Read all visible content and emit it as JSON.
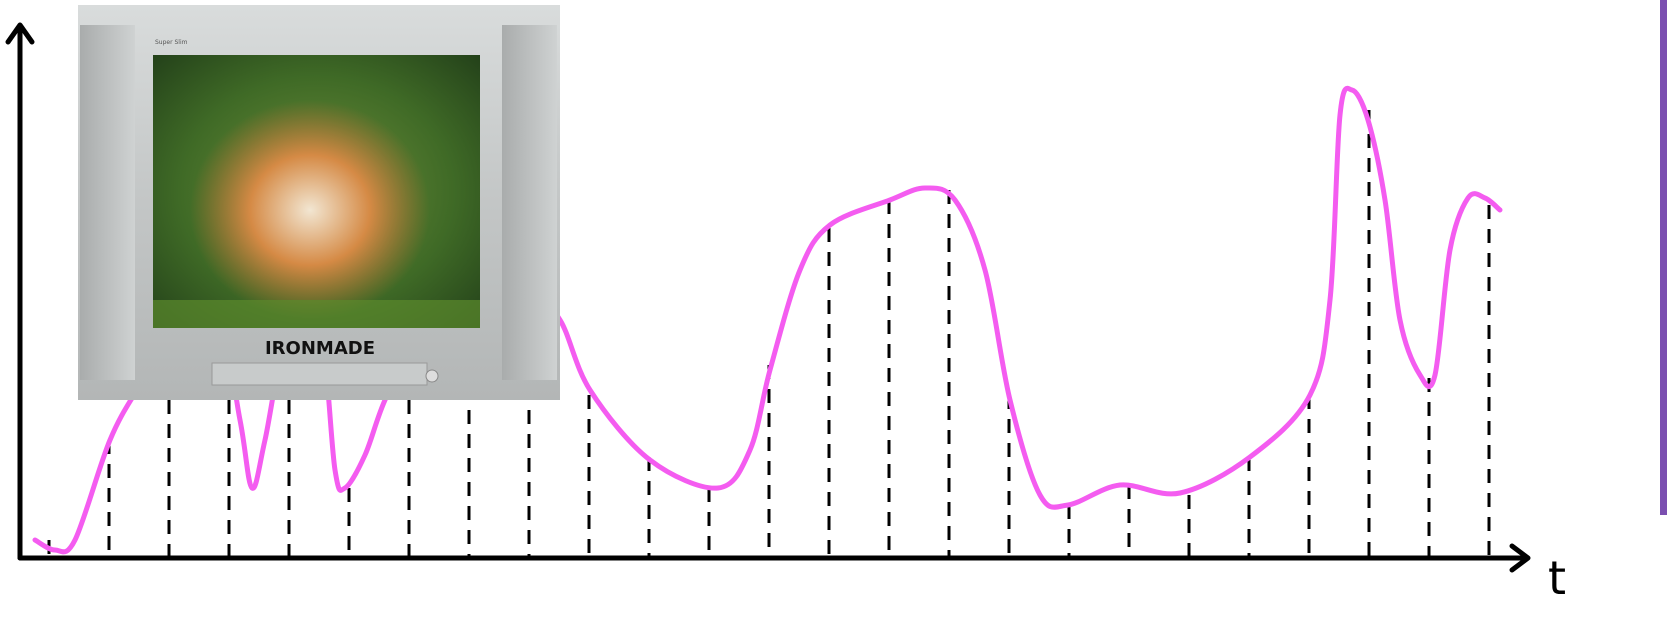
{
  "axis": {
    "label": "t"
  },
  "tv": {
    "brand": "IRONMADE",
    "model": "Super Slim"
  }
}
